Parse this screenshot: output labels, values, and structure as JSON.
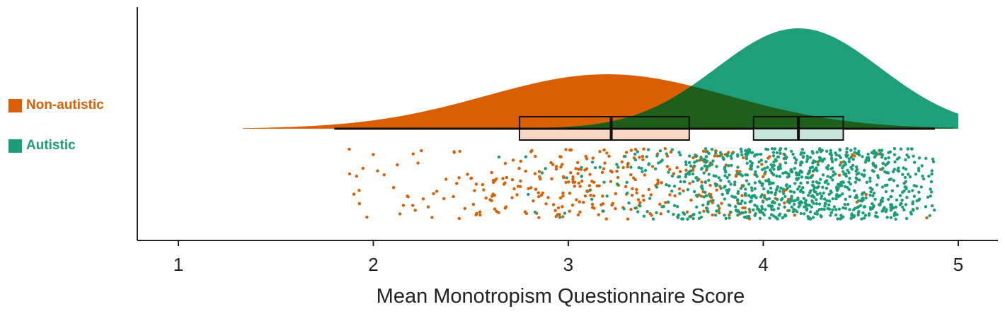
{
  "chart_data": {
    "type": "raincloud",
    "title": "",
    "xlabel": "Mean Monotropism Questionnaire Score",
    "ylabel": "",
    "xlim": [
      0.8,
      5.2
    ],
    "xticks": [
      1,
      2,
      3,
      4,
      5
    ],
    "xtick_labels": [
      "1",
      "2",
      "3",
      "4",
      "5"
    ],
    "grid": false,
    "legend_position": "left",
    "series": [
      {
        "name": "Non-autistic",
        "color": "#d95f02",
        "box_fill": "#f6d7c3",
        "density": {
          "mean": 3.2,
          "sd": 0.62,
          "min": 1.33,
          "max": 4.98
        },
        "box": {
          "q1": 2.75,
          "median": 3.22,
          "q3": 3.62,
          "whisker_low": 1.8,
          "whisker_high": 4.85
        },
        "points": {
          "count": 360,
          "range": [
            1.8,
            4.85
          ]
        }
      },
      {
        "name": "Autistic",
        "color": "#1b9e77",
        "box_fill": "#c6e6dc",
        "density": {
          "mean": 4.18,
          "sd": 0.42,
          "min": 2.45,
          "max": 5.0
        },
        "box": {
          "q1": 3.95,
          "median": 4.18,
          "q3": 4.41,
          "whisker_low": 2.45,
          "whisker_high": 4.88
        },
        "points": {
          "count": 950,
          "range": [
            2.45,
            4.88
          ]
        }
      }
    ]
  }
}
